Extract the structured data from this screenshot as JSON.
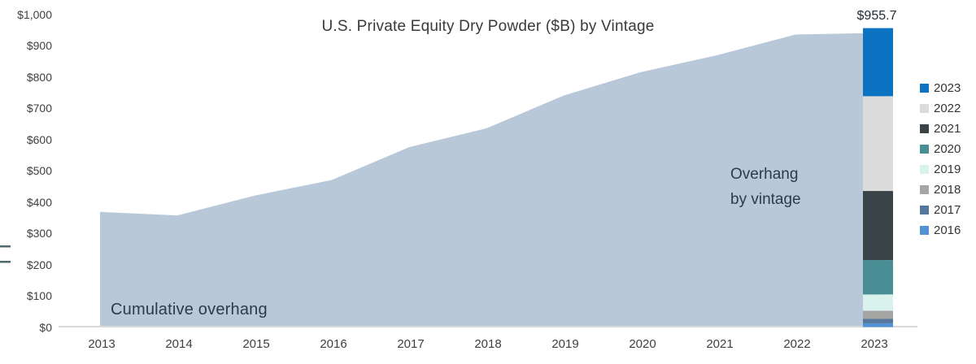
{
  "annotations": {
    "area_label": "Cumulative overhang",
    "bar_label_line1": "Overhang",
    "bar_label_line2": "by vintage",
    "total_label": "$955.7"
  },
  "y_axis": {
    "tick_labels": [
      "$0",
      "$100",
      "$200",
      "$300",
      "$400",
      "$500",
      "$600",
      "$700",
      "$800",
      "$900",
      "$1,000"
    ]
  },
  "x_axis": {
    "tick_labels": [
      "2013",
      "2014",
      "2015",
      "2016",
      "2017",
      "2018",
      "2019",
      "2020",
      "2021",
      "2022",
      "2023"
    ]
  },
  "legend": {
    "position": "right",
    "entries": [
      {
        "label": "2023",
        "color": "#0b73c2"
      },
      {
        "label": "2022",
        "color": "#dbdbdb"
      },
      {
        "label": "2021",
        "color": "#3a4347"
      },
      {
        "label": "2020",
        "color": "#4a8e95"
      },
      {
        "label": "2019",
        "color": "#d9f2ee"
      },
      {
        "label": "2018",
        "color": "#a5a5a4"
      },
      {
        "label": "2017",
        "color": "#54779b"
      },
      {
        "label": "2016",
        "color": "#5291d3"
      }
    ]
  },
  "colors": {
    "area_fill": "#b9c8d9",
    "axis_line": "#d9d9d9",
    "left_crop_marks": "#4d6b6e"
  },
  "chart_data": {
    "type": "area",
    "title": "U.S. Private Equity Dry Powder ($B) by Vintage",
    "x": [
      2013,
      2014,
      2015,
      2016,
      2017,
      2018,
      2019,
      2020,
      2021,
      2022,
      2023
    ],
    "series": [
      {
        "name": "Cumulative overhang",
        "values": [
          368,
          357,
          420,
          470,
          575,
          635,
          740,
          815,
          870,
          935,
          940
        ]
      }
    ],
    "stacked_bar": {
      "x": 2023,
      "name": "Overhang by vintage",
      "total": 955.7,
      "total_label": "$955.7",
      "segments_bottom_to_top": [
        {
          "vintage": "2016",
          "value": 12,
          "color": "#5291d3"
        },
        {
          "vintage": "2017",
          "value": 14,
          "color": "#54779b"
        },
        {
          "vintage": "2018",
          "value": 26,
          "color": "#a5a5a4"
        },
        {
          "vintage": "2019",
          "value": 52,
          "color": "#d9f2ee"
        },
        {
          "vintage": "2020",
          "value": 110,
          "color": "#4a8e95"
        },
        {
          "vintage": "2021",
          "value": 221,
          "color": "#3a4347"
        },
        {
          "vintage": "2022",
          "value": 303,
          "color": "#dbdbdb"
        },
        {
          "vintage": "2023",
          "value": 217.7,
          "color": "#0b73c2"
        }
      ]
    },
    "ylim": [
      0,
      1000
    ],
    "ytick_step": 100,
    "grid": false,
    "legend_position": "right"
  }
}
